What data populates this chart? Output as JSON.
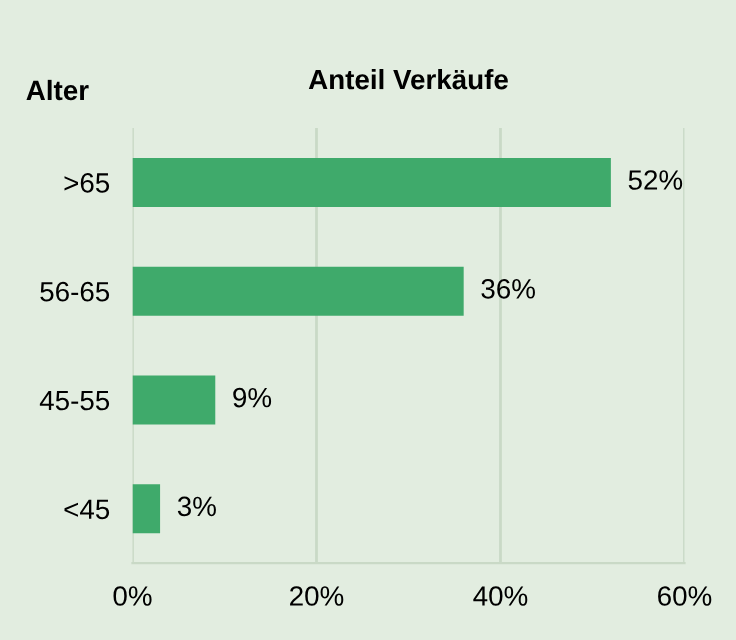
{
  "chart_data": {
    "type": "bar",
    "orientation": "horizontal",
    "title": "Anteil Verkäufe",
    "ylabel": "Alter",
    "categories": [
      ">65",
      "56-65",
      "45-55",
      "<45"
    ],
    "values": [
      52,
      36,
      9,
      3
    ],
    "value_labels": [
      "52%",
      "36%",
      "9%",
      "3%"
    ],
    "color": "#3faa6b",
    "xlim": [
      0,
      60
    ],
    "xticks": [
      {
        "value": 0,
        "label": "0%"
      },
      {
        "value": 20,
        "label": "20%"
      },
      {
        "value": 40,
        "label": "40%"
      },
      {
        "value": 60,
        "label": "60%"
      }
    ],
    "grid": "x"
  }
}
